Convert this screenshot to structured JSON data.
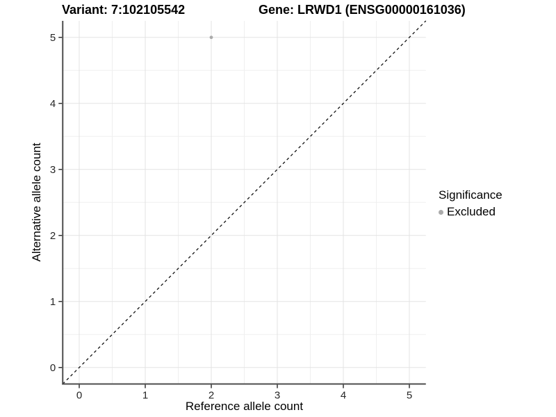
{
  "title": {
    "variant": "Variant: 7:102105542",
    "gene": "Gene: LRWD1 (ENSG00000161036)"
  },
  "chart_data": {
    "type": "scatter",
    "title": "Variant: 7:102105542   Gene: LRWD1 (ENSG00000161036)",
    "xlabel": "Reference allele count",
    "ylabel": "Alternative allele count",
    "xlim": [
      -0.25,
      5.25
    ],
    "ylim": [
      -0.25,
      5.25
    ],
    "xticks": [
      0,
      1,
      2,
      3,
      4,
      5
    ],
    "yticks": [
      0,
      1,
      2,
      3,
      4,
      5
    ],
    "minor_ticks": [
      0.5,
      1.5,
      2.5,
      3.5,
      4.5
    ],
    "grid": {
      "on": true,
      "major_color": "#e3e3e3",
      "minor_color": "#efefef"
    },
    "points": [
      {
        "x": 2,
        "y": 5,
        "series": "Excluded"
      }
    ],
    "series": [
      {
        "name": "Excluded",
        "color": "#ababab"
      }
    ],
    "identity_line": {
      "slope": 1,
      "intercept": 0,
      "style": "dashed",
      "color": "#111111"
    },
    "legend": {
      "title": "Significance",
      "position": "right",
      "entries": [
        {
          "label": "Excluded",
          "color": "#ababab",
          "marker": "circle"
        }
      ]
    },
    "axis_color": "#4d4d4d",
    "tick_color": "#333333",
    "tick_label_color": "#262626"
  }
}
